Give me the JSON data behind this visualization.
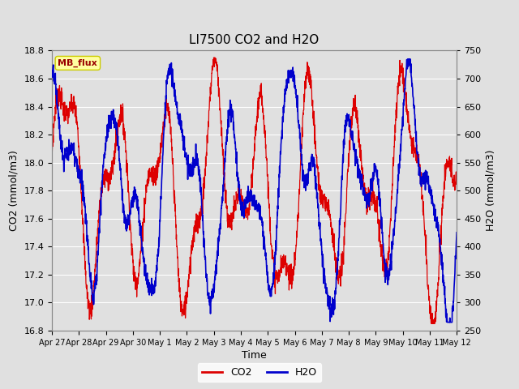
{
  "title": "LI7500 CO2 and H2O",
  "xlabel": "Time",
  "ylabel_left": "CO2 (mmol/m3)",
  "ylabel_right": "H2O (mmol/m3)",
  "annotation_text": "MB_flux",
  "annotation_bg": "#FFFFA0",
  "annotation_border": "#CCCC00",
  "annotation_text_color": "#990000",
  "co2_color": "#DD0000",
  "h2o_color": "#0000CC",
  "ylim_left": [
    16.8,
    18.8
  ],
  "ylim_right": [
    250,
    750
  ],
  "bg_color": "#E0E0E0",
  "plot_bg_color": "#E0E0E0",
  "grid_color": "#FFFFFF",
  "tick_labels_x": [
    "Apr 27",
    "Apr 28",
    "Apr 29",
    "Apr 30",
    "May 1",
    "May 2",
    "May 3",
    "May 4",
    "May 5",
    "May 6",
    "May 7",
    "May 8",
    "May 9",
    "May 10",
    "May 11",
    "May 12"
  ],
  "n_points": 2000,
  "seed": 7
}
